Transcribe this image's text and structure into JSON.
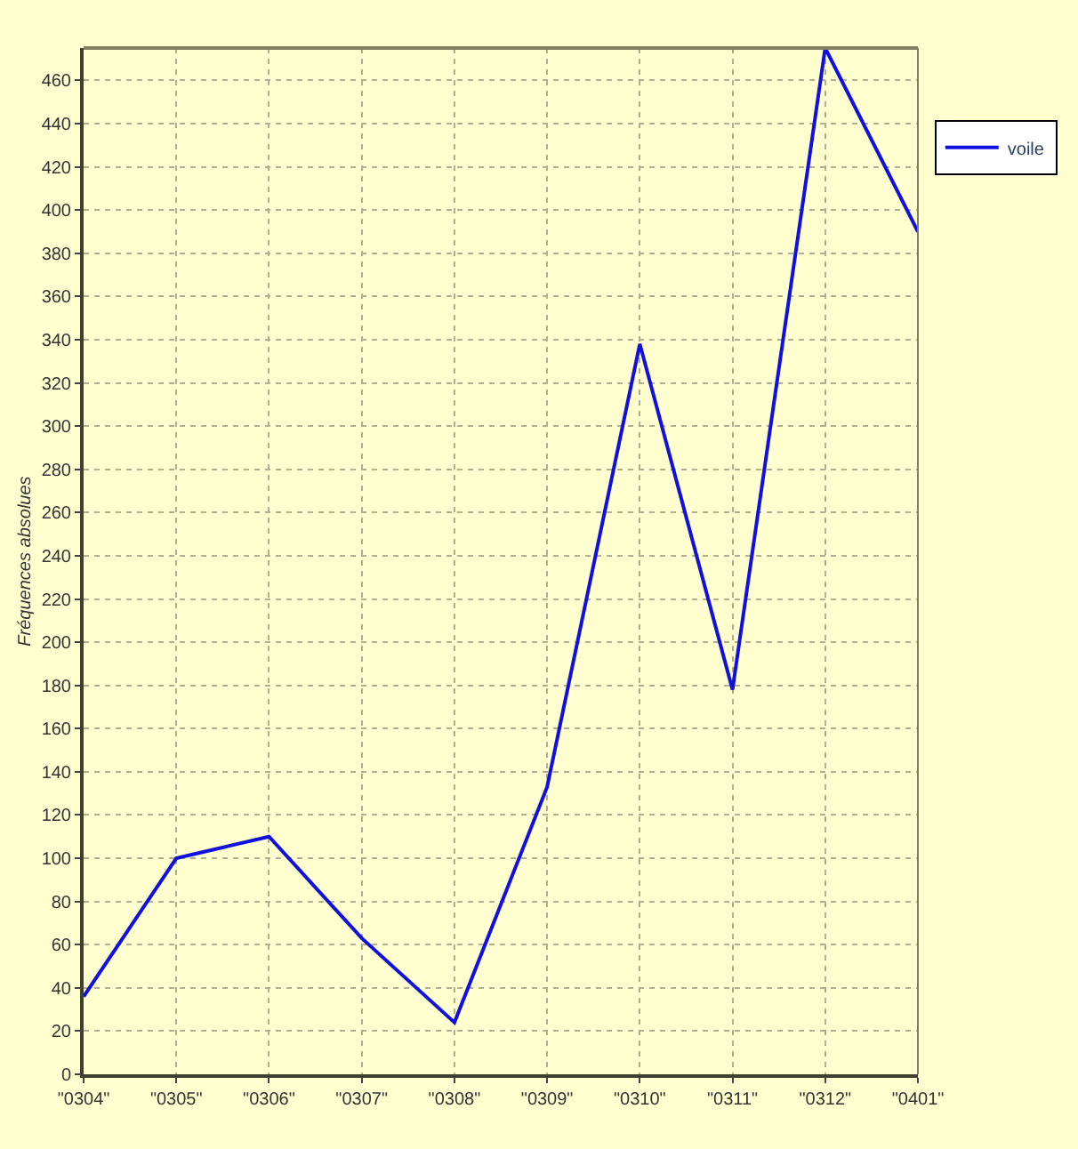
{
  "chart_data": {
    "type": "line",
    "ylabel": "Fréquences absolues",
    "categories": [
      "\"0304\"",
      "\"0305\"",
      "\"0306\"",
      "\"0307\"",
      "\"0308\"",
      "\"0309\"",
      "\"0310\"",
      "\"0311\"",
      "\"0312\"",
      "\"0401\""
    ],
    "series": [
      {
        "name": "voile",
        "color": "#1010e0",
        "values": [
          36,
          100,
          110,
          63,
          24,
          133,
          338,
          178,
          475,
          390
        ]
      }
    ],
    "ylim": [
      0,
      475
    ],
    "yticks": [
      0,
      20,
      40,
      60,
      80,
      100,
      120,
      140,
      160,
      180,
      200,
      220,
      240,
      260,
      280,
      300,
      320,
      340,
      360,
      380,
      400,
      420,
      440,
      460
    ],
    "grid": true,
    "legend": "top right",
    "marker": "none",
    "line_style": "solid"
  }
}
